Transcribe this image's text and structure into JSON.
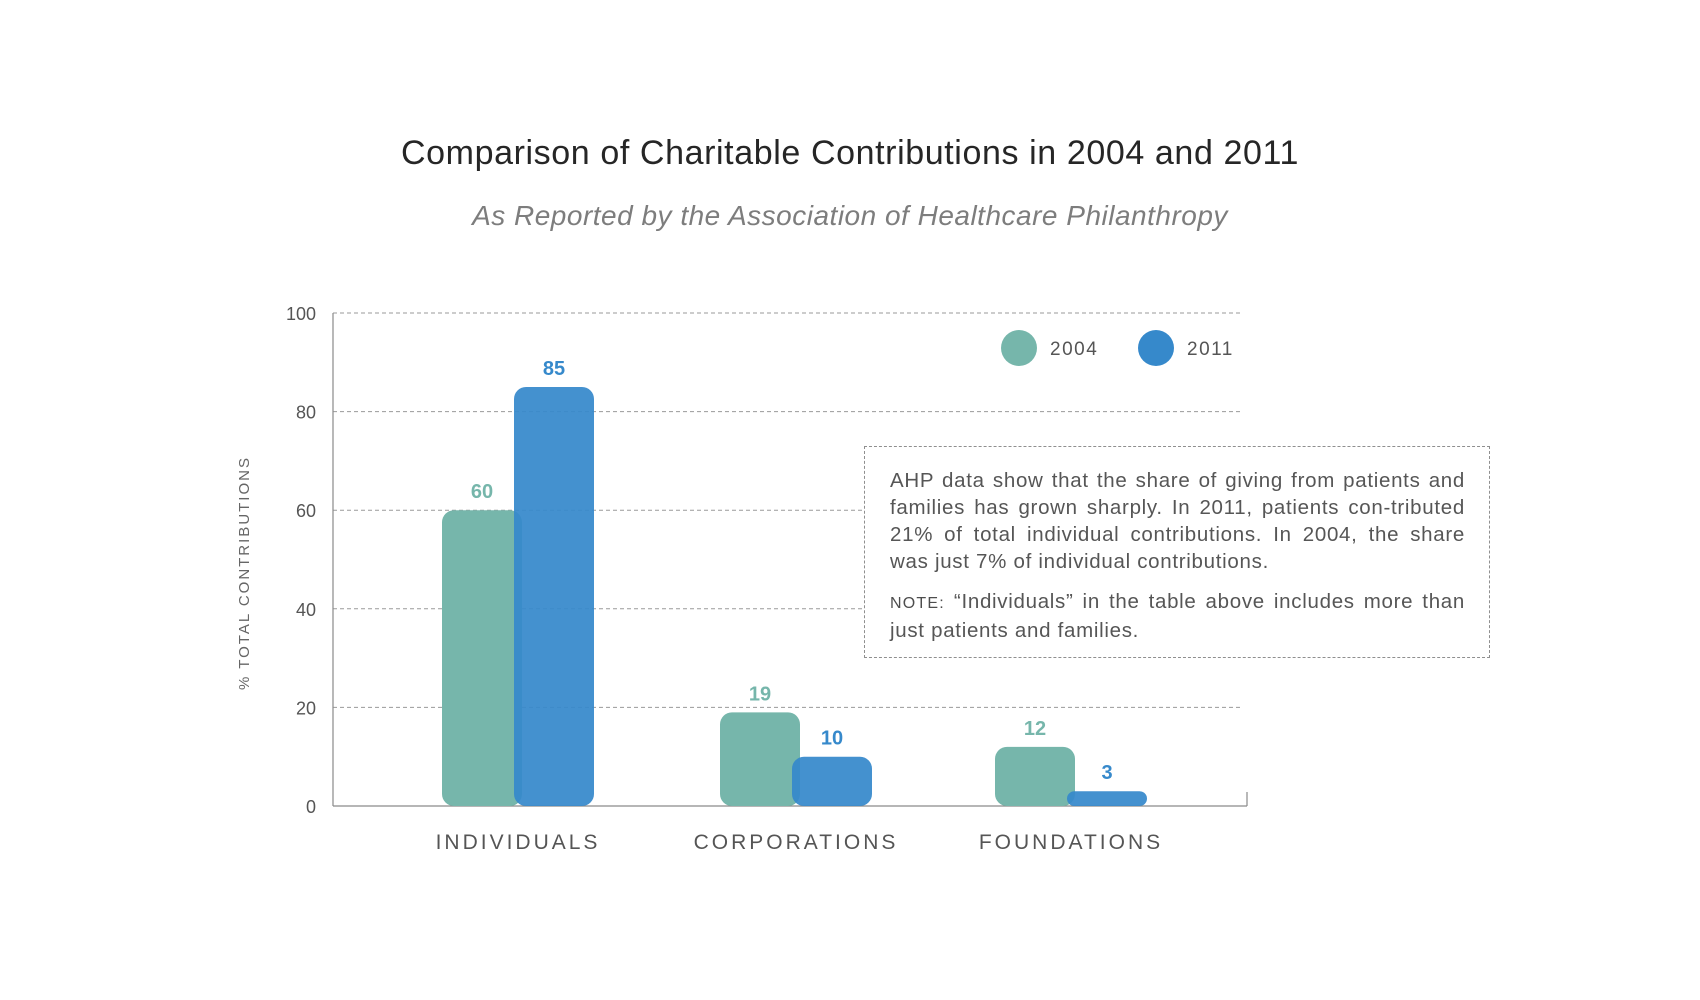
{
  "title": "Comparison of Charitable Contributions in 2004 and 2011",
  "subtitle": "As Reported by the Association of Healthcare Philanthropy",
  "colors": {
    "series_2004": "#76b6ab",
    "series_2011": "#3689cb",
    "grid": "#9a9a9a",
    "axis": "#8a8a8a",
    "text": "#555555"
  },
  "chart_data": {
    "type": "bar",
    "title": "Comparison of Charitable Contributions in 2004 and 2011",
    "subtitle": "As Reported by the Association of Healthcare Philanthropy",
    "categories": [
      "INDIVIDUALS",
      "CORPORATIONS",
      "FOUNDATIONS"
    ],
    "series": [
      {
        "name": "2004",
        "values": [
          60,
          19,
          12
        ]
      },
      {
        "name": "2011",
        "values": [
          85,
          10,
          3
        ]
      }
    ],
    "data_labels": true,
    "xlabel": "",
    "ylabel": "% TOTAL CONTRIBUTIONS",
    "ylim": [
      0,
      100
    ],
    "yticks": [
      0,
      20,
      40,
      60,
      80,
      100
    ],
    "grid": true,
    "legend_position": "top-right"
  },
  "note": {
    "text": "AHP data show that the share of giving from patients and families has grown sharply. In 2011, patients con-tributed 21% of total individual contributions. In 2004, the share was just 7% of individual contributions.",
    "label": "NOTE:",
    "label_text": " “Individuals” in the table above includes more than just patients and families."
  }
}
